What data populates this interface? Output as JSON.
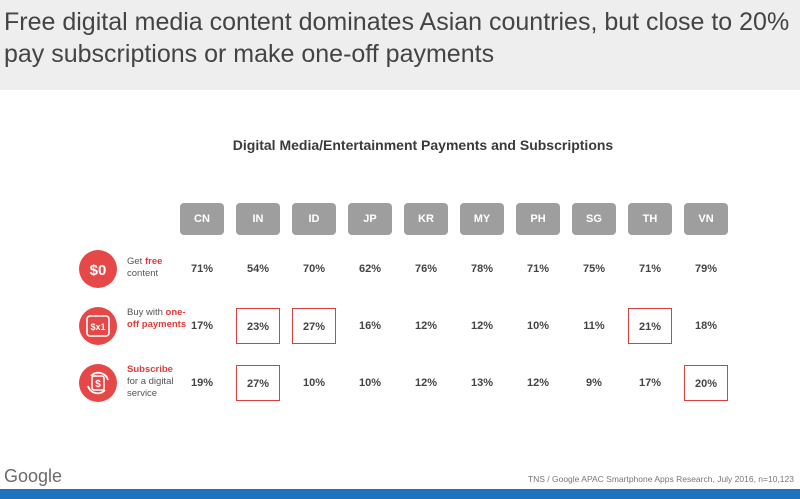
{
  "header": {
    "title": "Free digital media content dominates Asian countries, but close to 20% pay subscriptions or make one-off payments"
  },
  "footer": {
    "logo": "Google",
    "source": "TNS / Google APAC Smartphone Apps Research, July 2016, n=10,123"
  },
  "colors": {
    "accent": "#e64848",
    "column_header": "#9e9e9e",
    "bottom_bar": "#1e73be",
    "highlight_box": "#d94141"
  },
  "rows": [
    {
      "icon": "dollar-zero-icon",
      "icon_text": "$0",
      "label_pre": "Get ",
      "label_hl": "free",
      "label_post": "content"
    },
    {
      "icon": "dollar-times-one-icon",
      "icon_text": "$x1",
      "label_pre": "Buy with ",
      "label_hl": "one-off payments",
      "label_post": ""
    },
    {
      "icon": "subscription-cycle-icon",
      "icon_text": "$",
      "label_pre": "",
      "label_hl": "Subscribe",
      "label_post": "for a digital service"
    }
  ],
  "chart_data": {
    "type": "table",
    "title": "Digital Media/Entertainment Payments and Subscriptions",
    "columns": [
      "CN",
      "IN",
      "ID",
      "JP",
      "KR",
      "MY",
      "PH",
      "SG",
      "TH",
      "VN"
    ],
    "series": [
      {
        "name": "Get free content",
        "values": [
          71,
          54,
          70,
          62,
          76,
          78,
          71,
          75,
          71,
          79
        ],
        "highlighted": []
      },
      {
        "name": "Buy with one-off payments",
        "values": [
          17,
          23,
          27,
          16,
          12,
          12,
          10,
          11,
          21,
          18
        ],
        "highlighted": [
          "IN",
          "ID",
          "TH"
        ]
      },
      {
        "name": "Subscribe for a digital service",
        "values": [
          19,
          27,
          10,
          10,
          12,
          13,
          12,
          9,
          17,
          20
        ],
        "highlighted": [
          "IN",
          "VN"
        ]
      }
    ],
    "unit": "%"
  }
}
